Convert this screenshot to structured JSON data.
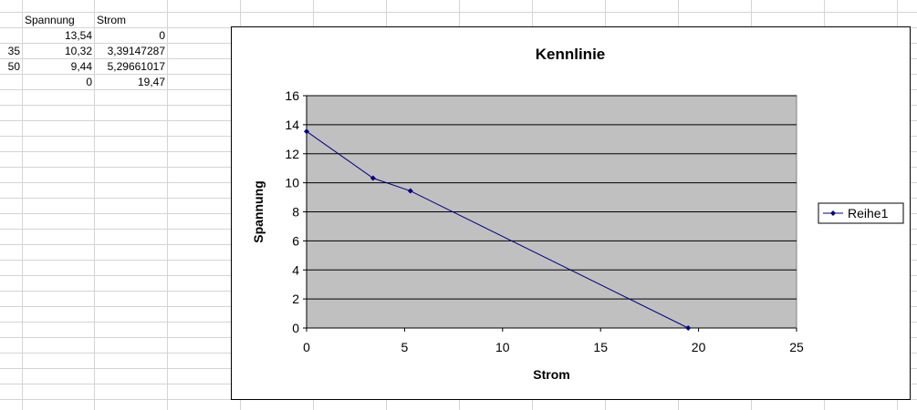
{
  "spreadsheet": {
    "header_row": [
      "Spannung",
      "Strom"
    ],
    "row_labels": [
      "",
      "35",
      "50",
      ""
    ],
    "rows": [
      [
        "13,54",
        "0"
      ],
      [
        "10,32",
        "3,39147287"
      ],
      [
        "9,44",
        "5,29661017"
      ],
      [
        "0",
        "19,47"
      ]
    ]
  },
  "chart_data": {
    "type": "scatter",
    "title": "Kennlinie",
    "xlabel": "Strom",
    "ylabel": "Spannung",
    "xlim": [
      0,
      25
    ],
    "ylim": [
      0,
      16
    ],
    "x_ticks": [
      "0",
      "5",
      "10",
      "15",
      "20",
      "25"
    ],
    "y_ticks": [
      "0",
      "2",
      "4",
      "6",
      "8",
      "10",
      "12",
      "14",
      "16"
    ],
    "grid": true,
    "legend_position": "right",
    "plot_background": "#c0c0c0",
    "series": [
      {
        "name": "Reihe1",
        "color": "#000080",
        "x": [
          0,
          3.39147287,
          5.29661017,
          19.47
        ],
        "y": [
          13.54,
          10.32,
          9.44,
          0
        ]
      }
    ]
  }
}
